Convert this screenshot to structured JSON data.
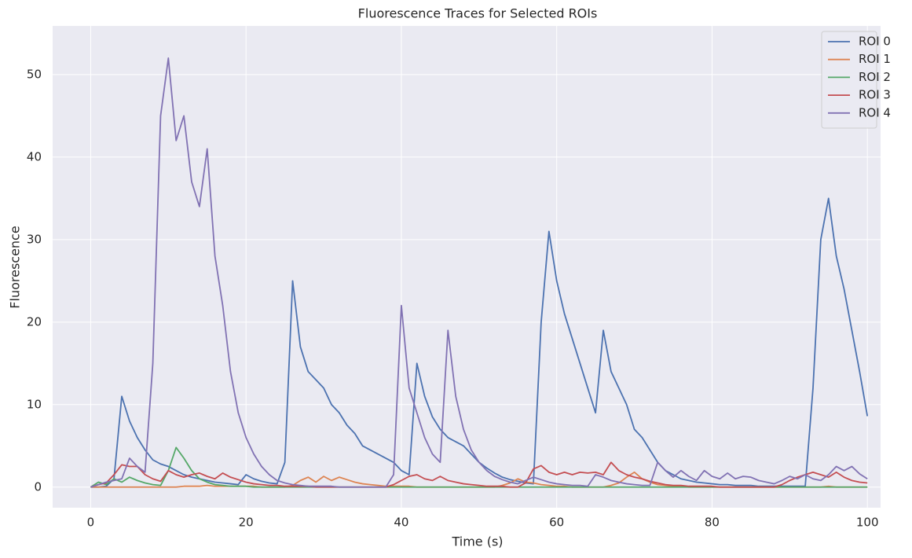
{
  "chart_data": {
    "type": "line",
    "title": "Fluorescence Traces for Selected ROIs",
    "x_label": "Time (s)",
    "y_label": "Fluorescence",
    "x": [
      0,
      1,
      2,
      3,
      4,
      5,
      6,
      7,
      8,
      9,
      10,
      11,
      12,
      13,
      14,
      15,
      16,
      17,
      18,
      19,
      20,
      21,
      22,
      23,
      24,
      25,
      26,
      27,
      28,
      29,
      30,
      31,
      32,
      33,
      34,
      35,
      36,
      37,
      38,
      39,
      40,
      41,
      42,
      43,
      44,
      45,
      46,
      47,
      48,
      49,
      50,
      51,
      52,
      53,
      54,
      55,
      56,
      57,
      58,
      59,
      60,
      61,
      62,
      63,
      64,
      65,
      66,
      67,
      68,
      69,
      70,
      71,
      72,
      73,
      74,
      75,
      76,
      77,
      78,
      79,
      80,
      81,
      82,
      83,
      84,
      85,
      86,
      87,
      88,
      89,
      90,
      91,
      92,
      93,
      94,
      95,
      96,
      97,
      98,
      99,
      100
    ],
    "series": [
      {
        "name": "ROI 0",
        "color": "#4c72b0",
        "values": [
          0,
          0,
          0.1,
          1,
          11,
          8,
          6,
          4.5,
          3.3,
          2.8,
          2.5,
          2,
          1.5,
          1.2,
          1,
          0.8,
          0.6,
          0.5,
          0.4,
          0.3,
          1.5,
          1,
          0.7,
          0.5,
          0.4,
          3,
          25,
          17,
          14,
          13,
          12,
          10,
          9,
          7.5,
          6.5,
          5,
          4.5,
          4,
          3.5,
          3,
          2,
          1.5,
          15,
          11,
          8.5,
          7,
          6,
          5.5,
          5,
          4,
          3,
          2.3,
          1.7,
          1.2,
          0.9,
          0.7,
          0.5,
          0.4,
          20,
          31,
          25,
          21,
          18,
          15,
          12,
          9,
          19,
          14,
          12,
          10,
          7,
          6,
          4.5,
          3,
          2,
          1.5,
          1,
          0.8,
          0.6,
          0.5,
          0.4,
          0.3,
          0.3,
          0.2,
          0.2,
          0.2,
          0.1,
          0.1,
          0.1,
          0.1,
          0.1,
          0.1,
          0.1,
          12,
          30,
          35,
          28,
          24,
          19,
          14,
          8.6
        ]
      },
      {
        "name": "ROI 1",
        "color": "#dd8452",
        "values": [
          0,
          0,
          0,
          0,
          0,
          0,
          0,
          0,
          0,
          0,
          0,
          0,
          0.1,
          0.1,
          0.1,
          0.2,
          0.1,
          0.1,
          0.1,
          0.1,
          0.1,
          0.1,
          0,
          0,
          0,
          0,
          0.2,
          0.8,
          1.2,
          0.6,
          1.3,
          0.8,
          1.2,
          0.9,
          0.6,
          0.4,
          0.3,
          0.2,
          0.1,
          0.1,
          0.1,
          0.1,
          0,
          0,
          0,
          0,
          0,
          0,
          0,
          0,
          0,
          0,
          0,
          0.2,
          0.5,
          1,
          0.6,
          0.5,
          0.3,
          0.2,
          0.1,
          0.1,
          0,
          0,
          0,
          0,
          0,
          0.2,
          0.5,
          1.2,
          1.8,
          1,
          0.6,
          0.3,
          0.2,
          0.1,
          0.1,
          0,
          0,
          0,
          0,
          0,
          0,
          0,
          0,
          0,
          0,
          0,
          0,
          0,
          0,
          0,
          0,
          0,
          0,
          0.1,
          0,
          0,
          0,
          0,
          0
        ]
      },
      {
        "name": "ROI 2",
        "color": "#55a868",
        "values": [
          0,
          0.6,
          0.3,
          1,
          0.6,
          1.2,
          0.8,
          0.5,
          0.3,
          0.2,
          2,
          4.8,
          3.5,
          2,
          1,
          0.6,
          0.3,
          0.2,
          0.1,
          0.1,
          0.1,
          0,
          0,
          0,
          0,
          0,
          0,
          0,
          0,
          0,
          0,
          0,
          0,
          0,
          0,
          0,
          0,
          0,
          0,
          0,
          0,
          0,
          0,
          0,
          0,
          0,
          0,
          0,
          0,
          0,
          0,
          0,
          0,
          0,
          0,
          0,
          0,
          0,
          0,
          0,
          0,
          0,
          0,
          0,
          0,
          0,
          0,
          0,
          0,
          0,
          0,
          0,
          0,
          0,
          0,
          0,
          0,
          0,
          0,
          0,
          0,
          0,
          0,
          0,
          0,
          0,
          0,
          0,
          0,
          0,
          0,
          0,
          0,
          0,
          0,
          0,
          0,
          0,
          0,
          0,
          0
        ]
      },
      {
        "name": "ROI 3",
        "color": "#c44e52",
        "values": [
          0,
          0.3,
          0.5,
          1.5,
          2.7,
          2.5,
          2.5,
          1.5,
          1,
          0.7,
          2,
          1.5,
          1.2,
          1.5,
          1.7,
          1.3,
          1,
          1.7,
          1.2,
          0.9,
          0.6,
          0.4,
          0.3,
          0.2,
          0.2,
          0.1,
          0.1,
          0.1,
          0.1,
          0,
          0,
          0,
          0,
          0,
          0,
          0,
          0,
          0,
          0,
          0.3,
          0.8,
          1.3,
          1.5,
          1,
          0.8,
          1.3,
          0.8,
          0.6,
          0.4,
          0.3,
          0.2,
          0.1,
          0.1,
          0.1,
          0,
          0,
          0.5,
          2.2,
          2.6,
          1.8,
          1.5,
          1.8,
          1.5,
          1.8,
          1.7,
          1.8,
          1.5,
          3,
          2,
          1.5,
          1.2,
          1,
          0.7,
          0.5,
          0.3,
          0.2,
          0.2,
          0.1,
          0.1,
          0.1,
          0.1,
          0,
          0,
          0,
          0,
          0,
          0,
          0,
          0,
          0.3,
          0.8,
          1.2,
          1.5,
          1.8,
          1.5,
          1.2,
          1.8,
          1.2,
          0.8,
          0.6,
          0.5
        ]
      },
      {
        "name": "ROI 4",
        "color": "#8172b3",
        "values": [
          0,
          0.3,
          0.6,
          0.8,
          1,
          3.5,
          2.5,
          1.8,
          15,
          45,
          52,
          42,
          45,
          37,
          34,
          41,
          28,
          22,
          14,
          9,
          6,
          4,
          2.5,
          1.5,
          0.8,
          0.5,
          0.3,
          0.2,
          0.1,
          0.1,
          0.1,
          0.1,
          0,
          0,
          0,
          0,
          0,
          0,
          0,
          1.5,
          22,
          12,
          9,
          6,
          4,
          3,
          19,
          11,
          7,
          4.5,
          3,
          2,
          1.3,
          0.9,
          0.6,
          0.4,
          0.8,
          1.2,
          0.9,
          0.6,
          0.4,
          0.3,
          0.2,
          0.2,
          0.1,
          1.5,
          1.2,
          0.8,
          0.6,
          0.4,
          0.3,
          0.2,
          0.2,
          3,
          2,
          1.2,
          2,
          1.3,
          0.8,
          2,
          1.3,
          1,
          1.7,
          1,
          1.3,
          1.2,
          0.8,
          0.6,
          0.4,
          0.8,
          1.3,
          1,
          1.5,
          1,
          0.8,
          1.5,
          2.5,
          2,
          2.5,
          1.6,
          1
        ]
      }
    ],
    "xlim": [
      -4.9,
      101.7
    ],
    "ylim": [
      -2.5,
      55.9
    ],
    "xticks": [
      0,
      20,
      40,
      60,
      80,
      100
    ],
    "yticks": [
      0,
      10,
      20,
      30,
      40,
      50
    ],
    "grid": true,
    "legend": "upper right"
  }
}
